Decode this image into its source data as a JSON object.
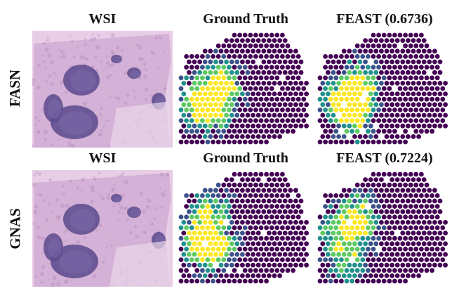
{
  "figure": {
    "rows": [
      {
        "label": "FASN",
        "panels": [
          {
            "kind": "wsi",
            "title": "WSI"
          },
          {
            "kind": "spots",
            "title": "Ground Truth"
          },
          {
            "kind": "spots",
            "title": "FEAST (0.6736)"
          }
        ]
      },
      {
        "label": "GNAS",
        "panels": [
          {
            "kind": "wsi",
            "title": "WSI"
          },
          {
            "kind": "spots",
            "title": "Ground Truth"
          },
          {
            "kind": "spots",
            "title": "FEAST (0.7224)"
          }
        ]
      }
    ],
    "colormap": [
      "#440154",
      "#3b528b",
      "#21918c",
      "#5ec962",
      "#fde725"
    ],
    "tissue_color": "#c9a6cf"
  }
}
